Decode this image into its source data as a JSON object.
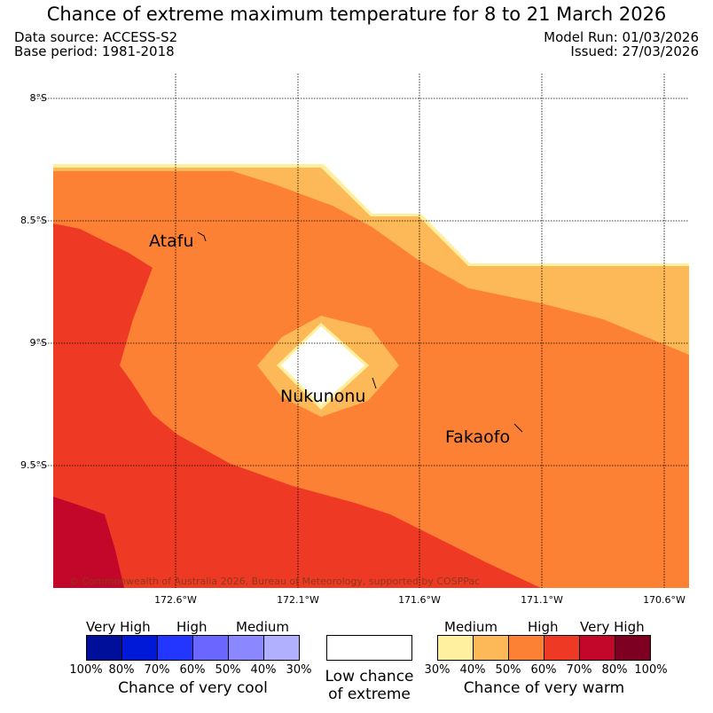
{
  "title": "Chance of extreme maximum temperature for 8 to 21 March 2026",
  "meta": {
    "data_source": "Data source: ACCESS-S2",
    "base_period": "Base period: 1981-2018",
    "model_run": "Model Run: 01/03/2026",
    "issued": "Issued: 27/03/2026"
  },
  "map": {
    "lat_labels": [
      "8°S",
      "8.5°S",
      "9°S",
      "9.5°S"
    ],
    "lon_labels": [
      "172.6°W",
      "172.1°W",
      "171.6°W",
      "171.1°W",
      "170.6°W"
    ],
    "places": [
      "Atafu",
      "Nukunonu",
      "Fakaofo"
    ],
    "copyright": "© Commonwealth of Australia 2026, Bureau of Meteorology, supported by COSPPac",
    "colors": {
      "land_none": "#ffffff",
      "edge_light": "#fff0a0",
      "medium_warm": "#fdb857",
      "high_warm": "#fd8135",
      "higher_warm": "#ee3a24",
      "very_high_warm": "#c3072a"
    }
  },
  "legend": {
    "cool": {
      "categories": [
        "Very High",
        "High",
        "Medium"
      ],
      "colors": [
        "#000f9a",
        "#0018d8",
        "#2236ff",
        "#6a66ff",
        "#8b87ff",
        "#b1afff"
      ],
      "ticks": [
        "100%",
        "80%",
        "70%",
        "60%",
        "50%",
        "40%",
        "30%"
      ],
      "caption": "Chance of very cool"
    },
    "neutral": {
      "color": "#ffffff",
      "caption_line1": "Low chance",
      "caption_line2": "of extreme"
    },
    "warm": {
      "categories": [
        "Medium",
        "High",
        "Very High"
      ],
      "colors": [
        "#fff0a0",
        "#fdb857",
        "#fd8135",
        "#ee3a24",
        "#c3072a",
        "#7d0022"
      ],
      "ticks": [
        "30%",
        "40%",
        "50%",
        "60%",
        "70%",
        "80%",
        "100%"
      ],
      "caption": "Chance of very warm"
    }
  }
}
